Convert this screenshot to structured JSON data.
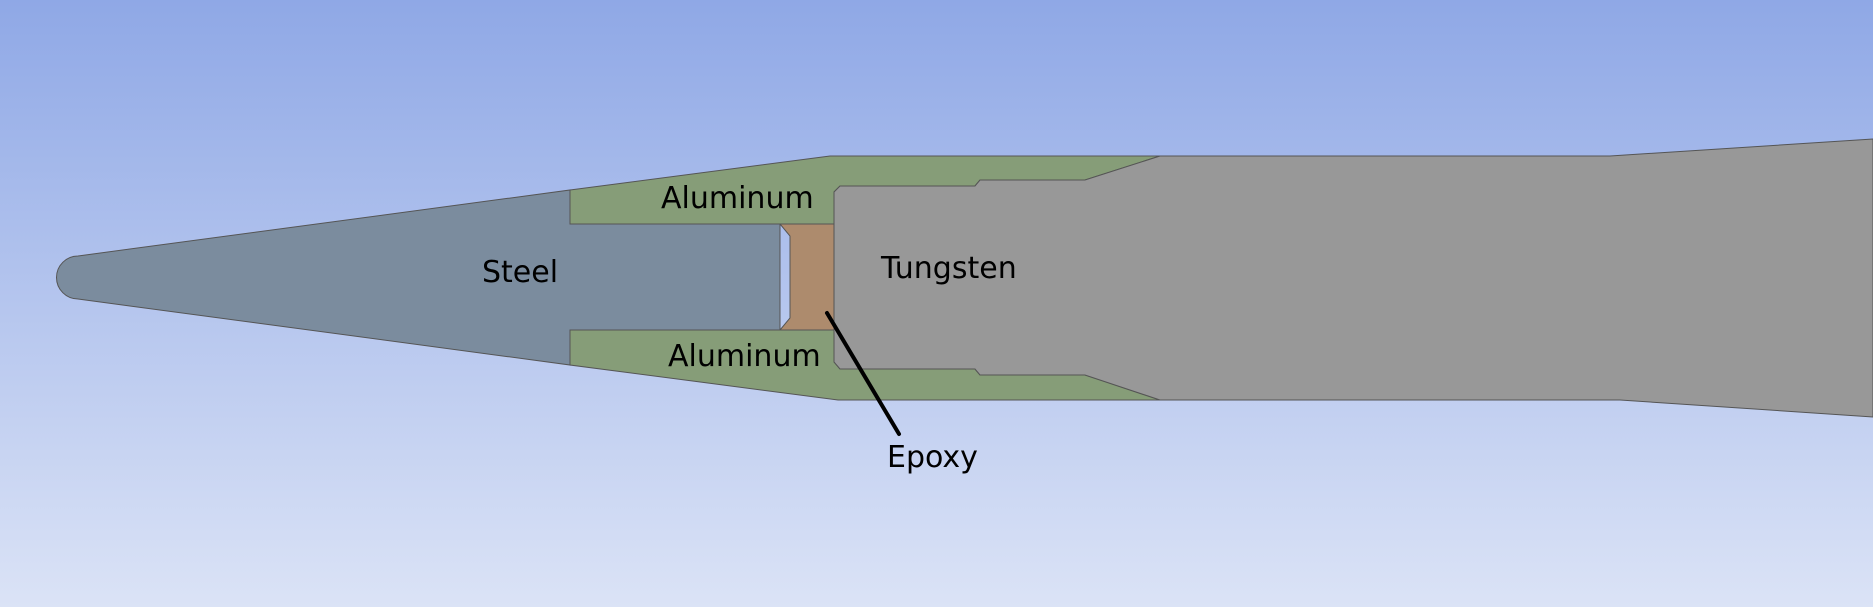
{
  "colors": {
    "background_top": "#8fa8e6",
    "background_bottom": "#dbe3f6",
    "steel": "#7b8c9e",
    "aluminum": "#869d78",
    "epoxy": "#ad8b6d",
    "tungsten": "#989898",
    "outline": "#555555",
    "leader_line": "#000000"
  },
  "labels": {
    "steel": "Steel",
    "aluminum_top": "Aluminum",
    "aluminum_bottom": "Aluminum",
    "tungsten": "Tungsten",
    "epoxy": "Epoxy"
  }
}
